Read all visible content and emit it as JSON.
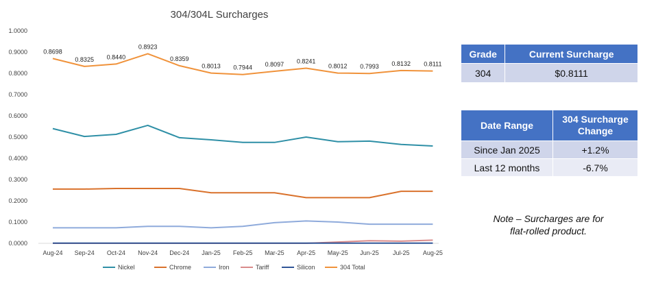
{
  "chart_data": {
    "type": "line",
    "title": "304/304L Surcharges",
    "categories": [
      "Aug-24",
      "Sep-24",
      "Oct-24",
      "Nov-24",
      "Dec-24",
      "Jan-25",
      "Feb-25",
      "Mar-25",
      "Apr-25",
      "May-25",
      "Jun-25",
      "Jul-25",
      "Aug-25"
    ],
    "ylim": [
      0,
      1
    ],
    "yticks": [
      "0.0000",
      "0.1000",
      "0.2000",
      "0.3000",
      "0.4000",
      "0.5000",
      "0.6000",
      "0.7000",
      "0.8000",
      "0.9000",
      "1.0000"
    ],
    "grid": false,
    "legend_position": "bottom",
    "series": [
      {
        "name": "Nickel",
        "color": "#2e8fa6",
        "values": [
          0.54,
          0.503,
          0.513,
          0.555,
          0.497,
          0.487,
          0.475,
          0.475,
          0.5,
          0.478,
          0.481,
          0.465,
          0.458
        ]
      },
      {
        "name": "Chrome",
        "color": "#d9712b",
        "values": [
          0.255,
          0.255,
          0.258,
          0.258,
          0.258,
          0.238,
          0.238,
          0.238,
          0.215,
          0.215,
          0.215,
          0.245,
          0.245
        ]
      },
      {
        "name": "Iron",
        "color": "#8eaadb",
        "values": [
          0.073,
          0.073,
          0.073,
          0.08,
          0.08,
          0.073,
          0.08,
          0.097,
          0.105,
          0.1,
          0.09,
          0.09,
          0.09
        ]
      },
      {
        "name": "Tariff",
        "color": "#d98a8a",
        "values": [
          0,
          0,
          0,
          0,
          0,
          0,
          0,
          0,
          0,
          0.006,
          0.012,
          0.01,
          0.015
        ]
      },
      {
        "name": "Silicon",
        "color": "#2f5597",
        "values": [
          0.001,
          0.001,
          0.001,
          0.001,
          0.001,
          0.001,
          0.001,
          0.001,
          0.001,
          0.001,
          0.001,
          0.001,
          0.001
        ]
      },
      {
        "name": "304 Total",
        "color": "#f0923a",
        "values": [
          0.8698,
          0.8325,
          0.844,
          0.8923,
          0.8359,
          0.8013,
          0.7944,
          0.8097,
          0.8241,
          0.8012,
          0.7993,
          0.8132,
          0.8111
        ]
      }
    ],
    "data_labels": [
      "0.8698",
      "0.8325",
      "0.8440",
      "0.8923",
      "0.8359",
      "0.8013",
      "0.7944",
      "0.8097",
      "0.8241",
      "0.8012",
      "0.7993",
      "0.8132",
      "0.8111"
    ]
  },
  "grade_table": {
    "headers": [
      "Grade",
      "Current Surcharge"
    ],
    "row": [
      "304",
      "$0.8111"
    ]
  },
  "range_table": {
    "headers": [
      "Date Range",
      "304 Surcharge\nChange"
    ],
    "rows": [
      [
        "Since Jan 2025",
        "+1.2%"
      ],
      [
        "Last 12 months",
        "-6.7%"
      ]
    ]
  },
  "note": {
    "line1": "Note – Surcharges are for",
    "line2": "flat-rolled product."
  },
  "colors": {
    "header": "#4472c4",
    "row_dark": "#cfd5ea",
    "row_light": "#e9ebf5"
  }
}
